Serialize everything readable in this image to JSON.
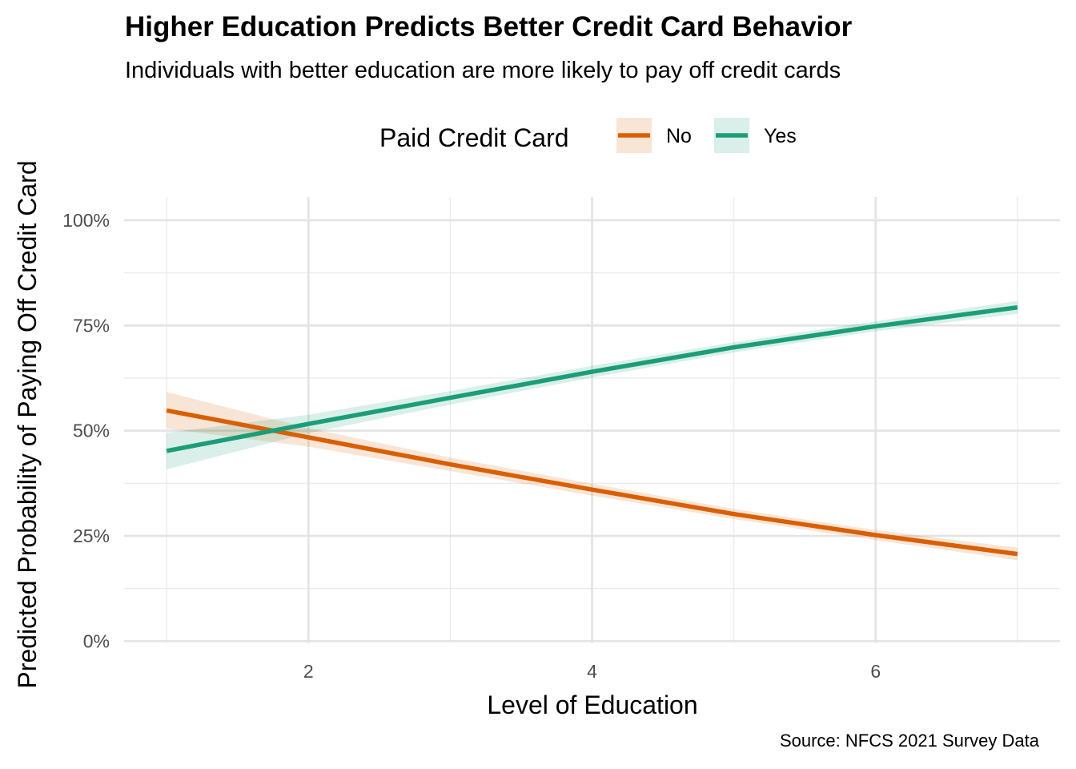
{
  "chart_data": {
    "type": "line",
    "title": "Higher Education Predicts Better Credit Card Behavior",
    "subtitle": "Individuals with better education are more likely to pay off credit cards",
    "caption": "Source: NFCS 2021 Survey Data",
    "xlabel": "Level of Education",
    "ylabel": "Predicted Probability of Paying Off Credit Card",
    "xlim": [
      0.7,
      7.3
    ],
    "ylim": [
      -0.005,
      1.055
    ],
    "x_ticks": [
      2,
      4,
      6
    ],
    "x_tick_labels": [
      "2",
      "4",
      "6"
    ],
    "y_ticks": [
      0,
      0.25,
      0.5,
      0.75,
      1.0
    ],
    "y_tick_labels": [
      "0%",
      "25%",
      "50%",
      "75%",
      "100%"
    ],
    "grid": true,
    "legend": {
      "title": "Paid Credit Card",
      "placement": "top",
      "entries": [
        "No",
        "Yes"
      ]
    },
    "x": [
      1,
      2,
      3,
      4,
      5,
      6,
      7
    ],
    "series": [
      {
        "name": "No",
        "color": "#D95F02",
        "values": [
          0.548,
          0.484,
          0.42,
          0.36,
          0.302,
          0.252,
          0.207
        ],
        "ci_lower": [
          0.505,
          0.462,
          0.404,
          0.346,
          0.29,
          0.24,
          0.192
        ],
        "ci_upper": [
          0.592,
          0.506,
          0.436,
          0.374,
          0.314,
          0.264,
          0.222
        ]
      },
      {
        "name": "Yes",
        "color": "#1B9E77",
        "values": [
          0.452,
          0.516,
          0.578,
          0.64,
          0.698,
          0.748,
          0.793
        ],
        "ci_lower": [
          0.408,
          0.494,
          0.562,
          0.626,
          0.686,
          0.736,
          0.778
        ],
        "ci_upper": [
          0.495,
          0.538,
          0.594,
          0.654,
          0.71,
          0.76,
          0.808
        ]
      }
    ]
  }
}
